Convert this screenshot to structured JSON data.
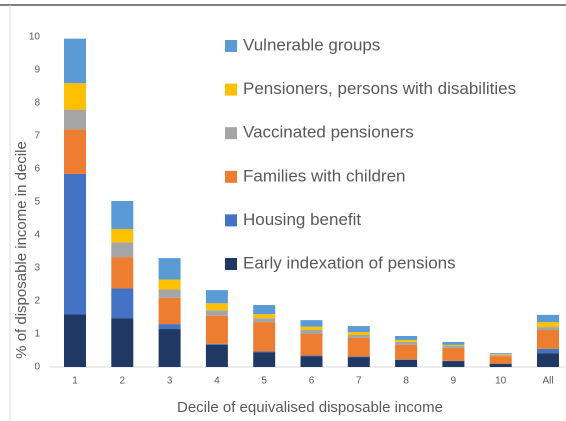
{
  "chart_data": {
    "type": "bar",
    "stacked": true,
    "x_label": "Decile of equivalised disposable income",
    "y_label": "% of disposable income in decile",
    "categories": [
      "1",
      "2",
      "3",
      "4",
      "5",
      "6",
      "7",
      "8",
      "9",
      "10",
      "All"
    ],
    "series": [
      {
        "name": "Early indexation of pensions",
        "color": "#203864",
        "values": [
          1.6,
          1.48,
          1.15,
          0.67,
          0.45,
          0.33,
          0.3,
          0.22,
          0.18,
          0.1,
          0.42
        ]
      },
      {
        "name": "Housing benefit",
        "color": "#4472c4",
        "values": [
          4.25,
          0.9,
          0.15,
          0.03,
          0.02,
          0.02,
          0.02,
          0.01,
          0.01,
          0,
          0.13
        ]
      },
      {
        "name": "Families with children",
        "color": "#ed7d31",
        "values": [
          1.35,
          0.95,
          0.8,
          0.85,
          0.89,
          0.65,
          0.56,
          0.44,
          0.39,
          0.23,
          0.57
        ]
      },
      {
        "name": "Vaccinated pensioners",
        "color": "#a5a5a5",
        "values": [
          0.6,
          0.45,
          0.25,
          0.17,
          0.12,
          0.12,
          0.09,
          0.09,
          0.06,
          0.03,
          0.09
        ]
      },
      {
        "name": "Pensioners, persons with disabilities",
        "color": "#ffc000",
        "values": [
          0.8,
          0.4,
          0.3,
          0.21,
          0.12,
          0.1,
          0.09,
          0.06,
          0.03,
          0.03,
          0.15
        ]
      },
      {
        "name": "Vulnerable groups",
        "color": "#5b9bd5",
        "values": [
          1.35,
          0.85,
          0.65,
          0.4,
          0.28,
          0.2,
          0.18,
          0.12,
          0.09,
          0.03,
          0.22
        ]
      }
    ],
    "ylim": [
      0,
      10
    ],
    "yticks": [
      0,
      1,
      2,
      3,
      4,
      5,
      6,
      7,
      8,
      9,
      10
    ],
    "grid": false
  }
}
